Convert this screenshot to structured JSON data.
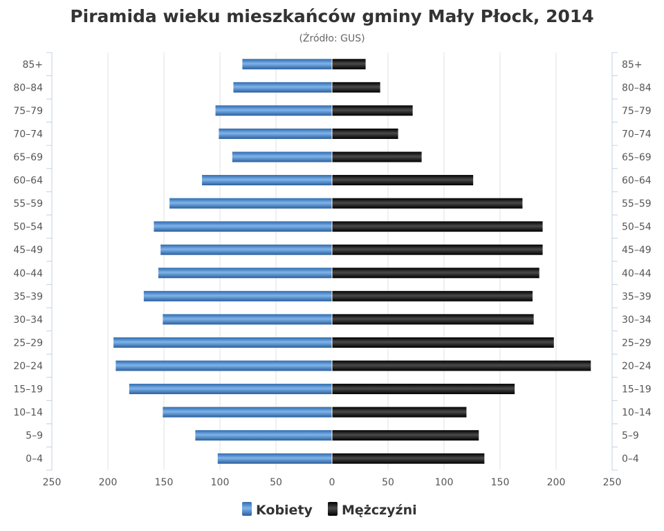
{
  "chart_data": {
    "type": "bar",
    "orientation": "horizontal-population-pyramid",
    "title": "Piramida wieku mieszkańców gminy Mały Płock, 2014",
    "subtitle": "(Źródło: GUS)",
    "categories": [
      "85+",
      "80–84",
      "75–79",
      "70–74",
      "65–69",
      "60–64",
      "55–59",
      "50–54",
      "45–49",
      "40–44",
      "35–39",
      "30–34",
      "25–29",
      "20–24",
      "15–19",
      "10–14",
      "5–9",
      "0–4"
    ],
    "series": [
      {
        "name": "Kobiety",
        "color": "#4a8ad0",
        "side": "left",
        "values": [
          80,
          88,
          104,
          101,
          89,
          116,
          145,
          159,
          153,
          155,
          168,
          151,
          195,
          193,
          181,
          151,
          122,
          102
        ]
      },
      {
        "name": "Mężczyźni",
        "color": "#1a1a1a",
        "side": "right",
        "values": [
          30,
          43,
          72,
          59,
          80,
          126,
          170,
          188,
          188,
          185,
          179,
          180,
          198,
          231,
          163,
          120,
          131,
          136
        ]
      }
    ],
    "x_ticks": [
      "250",
      "200",
      "150",
      "100",
      "50",
      "0",
      "50",
      "100",
      "150",
      "200",
      "250"
    ],
    "xlim": [
      -250,
      250
    ],
    "grid": true,
    "legend": "bottom-center"
  }
}
